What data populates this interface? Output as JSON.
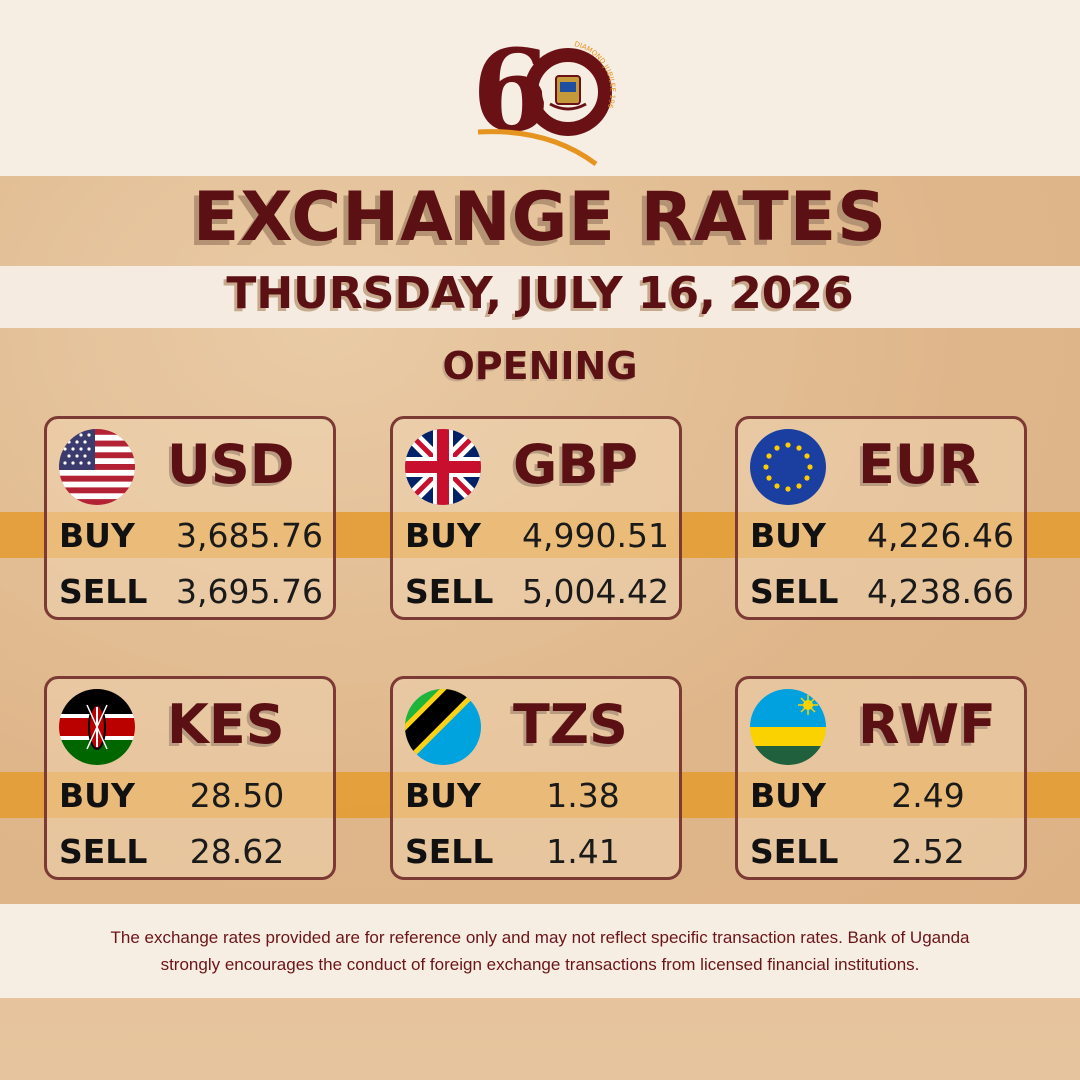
{
  "header": {
    "title": "EXCHANGE RATES",
    "date": "THURSDAY, JULY 16, 2026",
    "session": "OPENING"
  },
  "logo": {
    "numeral": "60",
    "arc_text": "DIAMOND JUBILEE 1966 - 2026"
  },
  "labels": {
    "buy": "BUY",
    "sell": "SELL"
  },
  "currencies": [
    {
      "code": "USD",
      "buy": "3,685.76",
      "sell": "3,695.76",
      "flag": "us-flag-icon"
    },
    {
      "code": "GBP",
      "buy": "4,990.51",
      "sell": "5,004.42",
      "flag": "uk-flag-icon"
    },
    {
      "code": "EUR",
      "buy": "4,226.46",
      "sell": "4,238.66",
      "flag": "eu-flag-icon"
    },
    {
      "code": "KES",
      "buy": "28.50",
      "sell": "28.62",
      "flag": "kenya-flag-icon"
    },
    {
      "code": "TZS",
      "buy": "1.38",
      "sell": "1.41",
      "flag": "tanzania-flag-icon"
    },
    {
      "code": "RWF",
      "buy": "2.49",
      "sell": "2.52",
      "flag": "rwanda-flag-icon"
    }
  ],
  "disclaimer": {
    "line1": "The exchange rates provided are for reference only and may not reflect specific transaction rates. Bank of Uganda",
    "line2": "strongly encourages the conduct of foreign exchange transactions from licensed financial institutions."
  },
  "colors": {
    "maroon": "#5b1114",
    "stripe": "#e49d36",
    "card_border": "#7b3a34"
  }
}
